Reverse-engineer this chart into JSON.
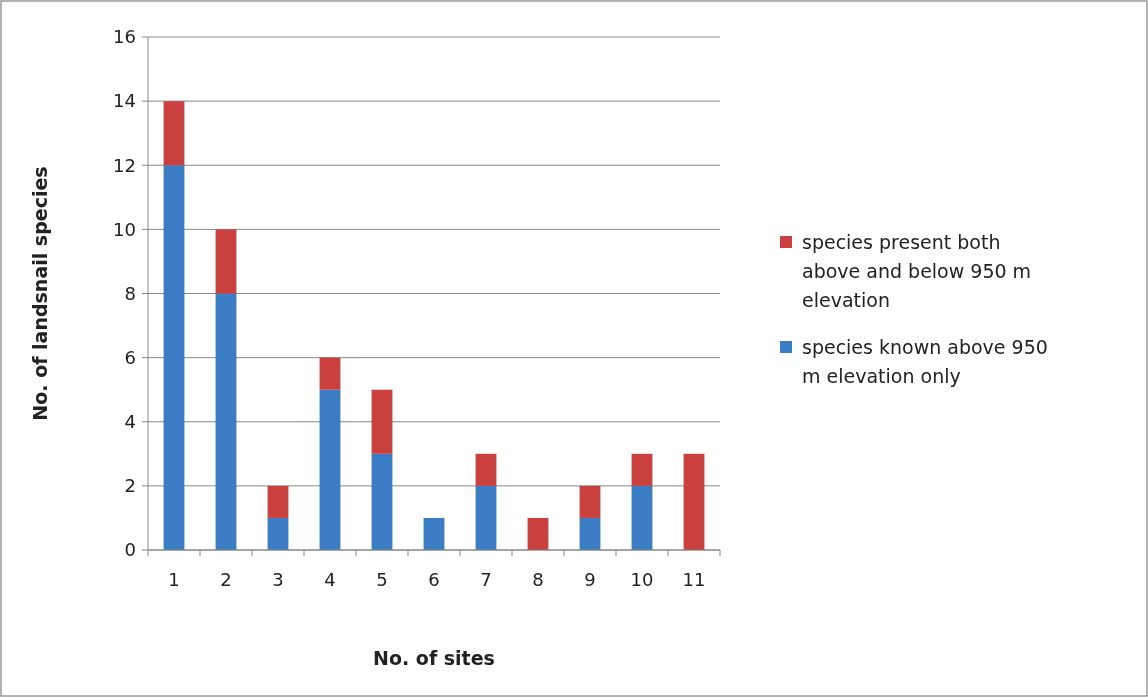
{
  "chart_data": {
    "type": "bar",
    "stacked": true,
    "xlabel": "No. of sites",
    "ylabel": "No. of landsnail species",
    "categories": [
      "1",
      "2",
      "3",
      "4",
      "5",
      "6",
      "7",
      "8",
      "9",
      "10",
      "11"
    ],
    "series": [
      {
        "name": "species known above 950 m elevation only",
        "color": "#3b7dc4",
        "values": [
          12,
          8,
          1,
          5,
          3,
          1,
          2,
          0,
          1,
          2,
          0
        ]
      },
      {
        "name": "species present both above and below 950 m elevation",
        "color": "#c9403f",
        "values": [
          2,
          2,
          1,
          1,
          2,
          0,
          1,
          1,
          1,
          1,
          3
        ]
      }
    ],
    "ylim": [
      0,
      16
    ],
    "yticks": [
      0,
      2,
      4,
      6,
      8,
      10,
      12,
      14,
      16
    ],
    "grid": "y",
    "legend": "right"
  }
}
